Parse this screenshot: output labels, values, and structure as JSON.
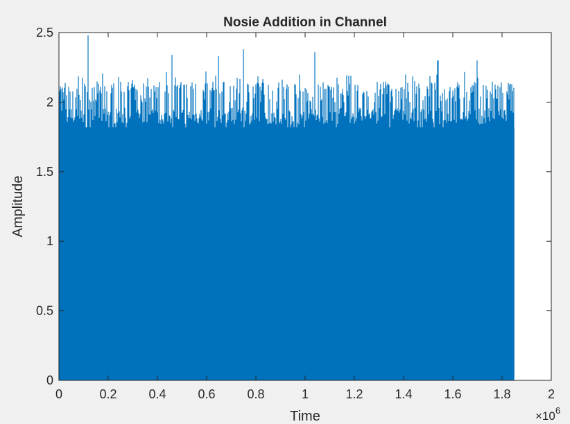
{
  "chart_data": {
    "type": "bar",
    "title": "Nosie Addition in Channel",
    "xlabel": "Time",
    "ylabel": "Amplitude",
    "x_exponent_label": "×10",
    "x_exponent_power": "6",
    "xlim": [
      0,
      2000000
    ],
    "ylim": [
      0,
      2.5
    ],
    "x_data_range": [
      0,
      1850000
    ],
    "xticks": [
      0,
      0.2,
      0.4,
      0.6,
      0.8,
      1,
      1.2,
      1.4,
      1.6,
      1.8,
      2
    ],
    "xtick_labels": [
      "0",
      "0.2",
      "0.4",
      "0.6",
      "0.8",
      "1",
      "1.2",
      "1.4",
      "1.6",
      "1.8",
      "2"
    ],
    "yticks": [
      0,
      0.5,
      1,
      1.5,
      2,
      2.5
    ],
    "ytick_labels": [
      "0",
      "0.5",
      "1",
      "1.5",
      "2",
      "2.5"
    ],
    "series_color": "#0072bd",
    "envelope": {
      "baseline_mean": 1.9,
      "typical_peak_range": [
        2.0,
        2.15
      ],
      "max_peak": 2.48,
      "min_trough": 1.7
    },
    "notable_peaks": [
      {
        "x": 120000,
        "y": 2.48
      },
      {
        "x": 460000,
        "y": 2.34
      },
      {
        "x": 650000,
        "y": 2.33
      },
      {
        "x": 750000,
        "y": 2.38
      },
      {
        "x": 1040000,
        "y": 2.36
      },
      {
        "x": 1540000,
        "y": 2.3
      },
      {
        "x": 1700000,
        "y": 2.3
      }
    ],
    "grid": false,
    "box": true
  }
}
